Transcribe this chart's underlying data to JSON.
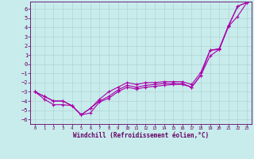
{
  "title": "",
  "xlabel": "Windchill (Refroidissement éolien,°C)",
  "ylabel": "",
  "bg_color": "#c8ecec",
  "grid_color": "#b4d8d8",
  "line_color": "#aa00aa",
  "xlim": [
    -0.5,
    23.5
  ],
  "ylim": [
    -6.5,
    6.8
  ],
  "xticks": [
    0,
    1,
    2,
    3,
    4,
    5,
    6,
    7,
    8,
    9,
    10,
    11,
    12,
    13,
    14,
    15,
    16,
    17,
    18,
    19,
    20,
    21,
    22,
    23
  ],
  "yticks": [
    -6,
    -5,
    -4,
    -3,
    -2,
    -1,
    0,
    1,
    2,
    3,
    4,
    5,
    6
  ],
  "line_max_x": [
    0,
    1,
    2,
    3,
    4,
    5,
    6,
    7,
    8,
    9,
    10,
    11,
    12,
    13,
    14,
    15,
    16,
    17,
    18,
    19,
    20,
    21,
    22,
    23
  ],
  "line_max_y": [
    -3.0,
    -3.5,
    -4.0,
    -4.0,
    -4.5,
    -5.5,
    -4.8,
    -3.8,
    -3.0,
    -2.5,
    -2.0,
    -2.2,
    -2.0,
    -2.0,
    -1.9,
    -1.9,
    -1.9,
    -2.2,
    -0.9,
    1.5,
    1.7,
    4.2,
    6.3,
    6.7
  ],
  "line_mid_x": [
    0,
    1,
    2,
    3,
    4,
    5,
    6,
    7,
    8,
    9,
    10,
    11,
    12,
    13,
    14,
    15,
    16,
    17,
    18,
    19,
    20,
    21,
    22,
    23
  ],
  "line_mid_y": [
    -3.0,
    -3.5,
    -4.0,
    -4.0,
    -4.5,
    -5.5,
    -4.8,
    -4.0,
    -3.5,
    -2.8,
    -2.3,
    -2.5,
    -2.3,
    -2.2,
    -2.1,
    -2.1,
    -2.1,
    -2.5,
    -1.2,
    0.9,
    1.6,
    4.1,
    5.2,
    6.7
  ],
  "line_min_x": [
    0,
    1,
    2,
    3,
    4,
    5,
    6,
    7,
    8,
    9,
    10,
    11,
    12,
    13,
    14,
    15,
    16,
    17,
    18,
    19,
    20,
    21,
    22,
    23
  ],
  "line_min_y": [
    -3.0,
    -3.8,
    -4.4,
    -4.4,
    -4.5,
    -5.5,
    -5.3,
    -4.1,
    -3.7,
    -3.0,
    -2.5,
    -2.7,
    -2.5,
    -2.4,
    -2.3,
    -2.2,
    -2.2,
    -2.5,
    -1.2,
    1.5,
    1.6,
    4.1,
    6.3,
    6.7
  ]
}
